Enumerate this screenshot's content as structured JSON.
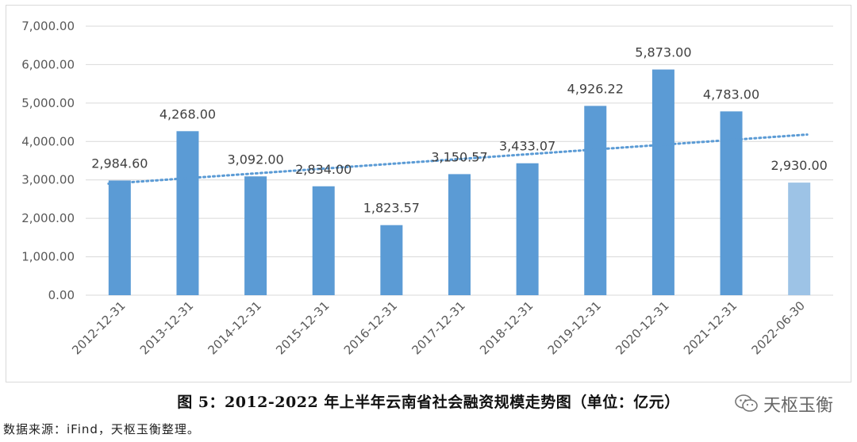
{
  "chart_data": {
    "type": "bar",
    "categories": [
      "2012-12-31",
      "2013-12-31",
      "2014-12-31",
      "2015-12-31",
      "2016-12-31",
      "2017-12-31",
      "2018-12-31",
      "2019-12-31",
      "2020-12-31",
      "2021-12-31",
      "2022-06-30"
    ],
    "values": [
      2984.6,
      4268.0,
      3092.0,
      2834.0,
      1823.57,
      3150.57,
      3433.07,
      4926.22,
      5873.0,
      4783.0,
      2930.0
    ],
    "value_labels": [
      "2,984.60",
      "4,268.00",
      "3,092.00",
      "2,834.00",
      "1,823.57",
      "3,150.57",
      "3,433.07",
      "4,926.22",
      "5,873.00",
      "4,783.00",
      "2,930.00"
    ],
    "y_ticks": [
      "0.00",
      "1,000.00",
      "2,000.00",
      "3,000.00",
      "4,000.00",
      "5,000.00",
      "6,000.00",
      "7,000.00"
    ],
    "ylim": [
      0,
      7000
    ],
    "grid": true,
    "trendline": {
      "style": "dotted",
      "start": 2900,
      "end": 4180
    },
    "colors": {
      "bar": "#5b9bd5",
      "bar_highlight": "#9dc3e6",
      "trend": "#5b9bd5",
      "grid": "#d9d9d9"
    },
    "title": "",
    "xlabel": "",
    "ylabel": ""
  },
  "caption": "图 5：2012-2022 年上半年云南省社会融资规模走势图（单位：亿元）",
  "watermark": "天枢玉衡",
  "source": "数据来源：iFind，天枢玉衡整理。"
}
